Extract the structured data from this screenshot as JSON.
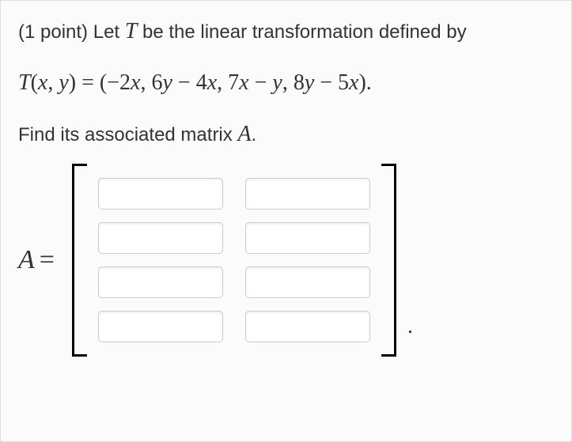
{
  "problem": {
    "points_label": "(1 point)",
    "intro_prefix": "Let ",
    "transformation_symbol": "T",
    "intro_suffix": " be the linear transformation defined by",
    "formula_lhs": "T(x, y) = ",
    "formula_rhs": "(−2x, 6y − 4x, 7x − y, 8y − 5x).",
    "find_prefix": "Find its associated matrix ",
    "matrix_symbol": "A",
    "find_suffix": "."
  },
  "matrix": {
    "label": "A",
    "equals": "=",
    "rows": 4,
    "cols": 2,
    "cells": [
      {
        "id": "a11",
        "value": ""
      },
      {
        "id": "a12",
        "value": ""
      },
      {
        "id": "a21",
        "value": ""
      },
      {
        "id": "a22",
        "value": ""
      },
      {
        "id": "a31",
        "value": ""
      },
      {
        "id": "a32",
        "value": ""
      },
      {
        "id": "a41",
        "value": ""
      },
      {
        "id": "a42",
        "value": ""
      }
    ],
    "trailing": "."
  },
  "style": {
    "card_bg": "#fbfbfb",
    "card_border": "#dddddd",
    "text_color": "#333333",
    "input_border": "#cccccc",
    "input_bg": "#ffffff",
    "bracket_color": "#000000",
    "body_fontsize": 24,
    "math_fontsize": 28,
    "lhs_fontsize": 34,
    "input_width": 158,
    "input_height": 40,
    "col_gap": 28,
    "row_gap": 16
  }
}
